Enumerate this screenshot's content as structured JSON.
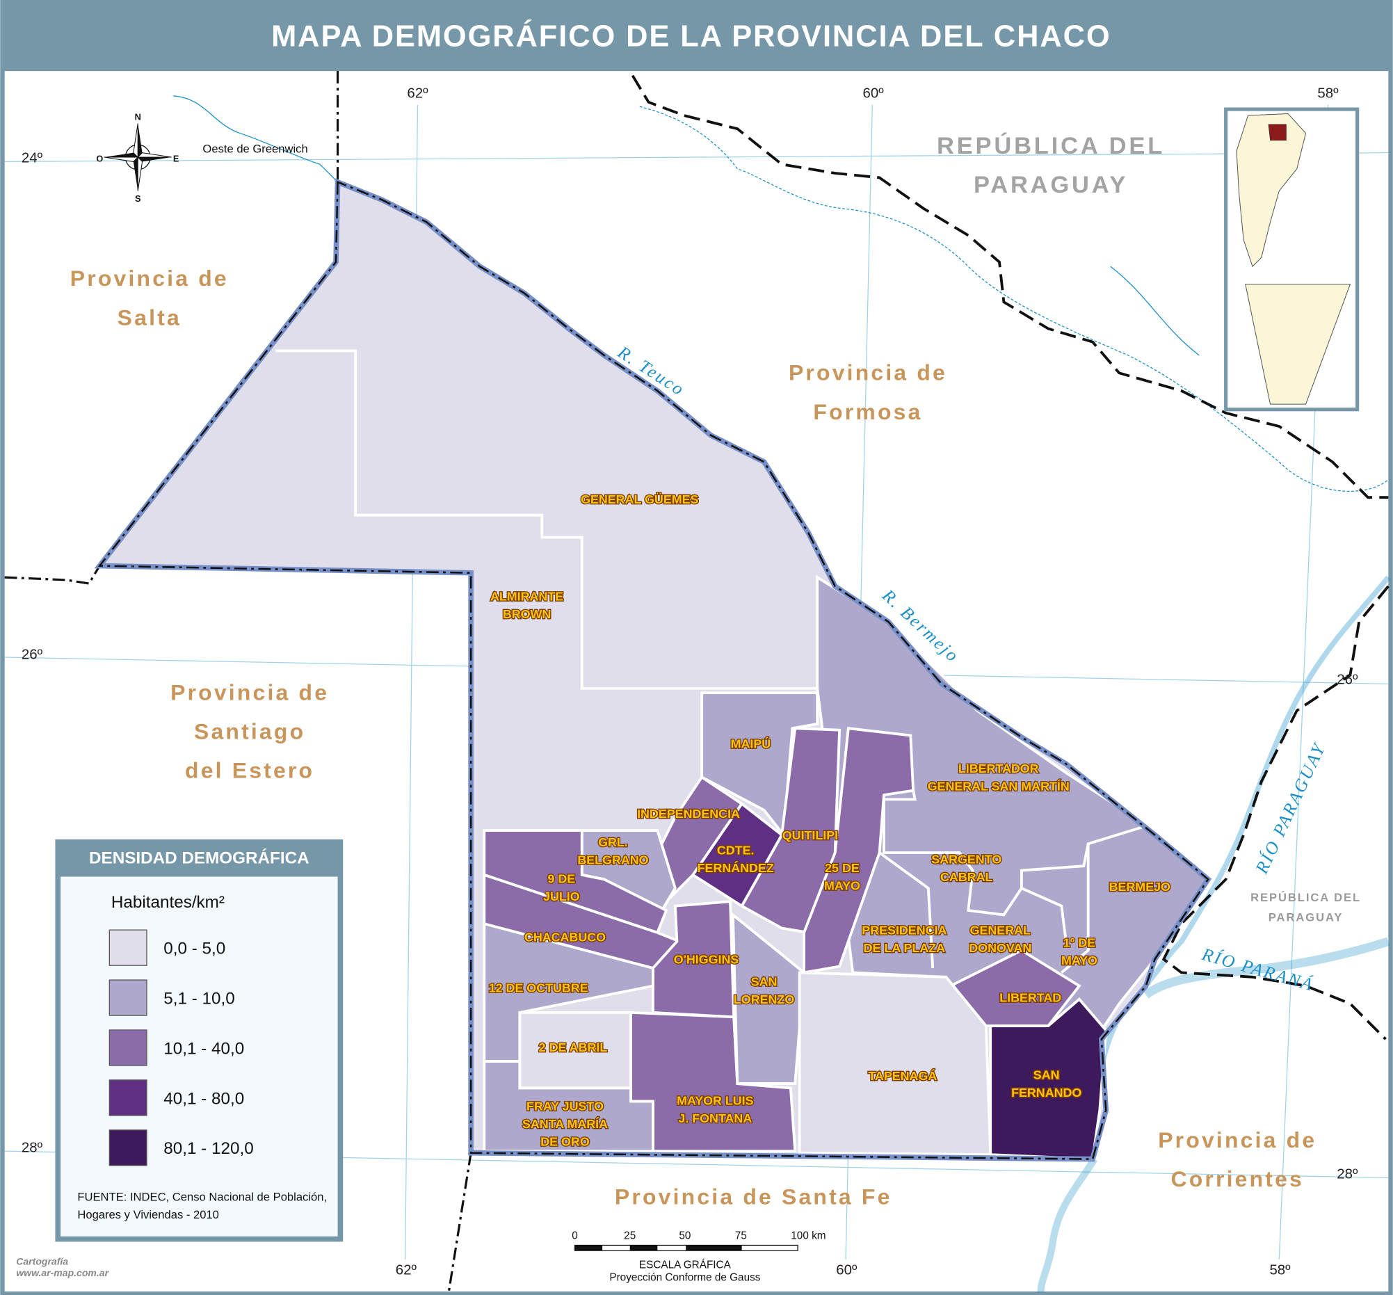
{
  "header": {
    "title": "MAPA DEMOGRÁFICO DE LA PROVINCIA DEL CHACO"
  },
  "map": {
    "regions": [
      {
        "label": [
          "Provincia de",
          "Salta"
        ]
      },
      {
        "label": [
          "Provincia de",
          "Formosa"
        ]
      },
      {
        "label": [
          "Provincia de",
          "Santiago",
          "del Estero"
        ]
      },
      {
        "label": [
          "Provincia de Santa Fe"
        ]
      },
      {
        "label": [
          "Provincia de",
          "Corrientes"
        ]
      }
    ],
    "countries": [
      {
        "label": [
          "REPÚBLICA DEL",
          "PARAGUAY"
        ]
      },
      {
        "label": [
          "REPÚBLICA DEL",
          "PARAGUAY"
        ]
      }
    ],
    "rivers": [
      "R. Teuco",
      "R. Bermejo",
      "RÍO PARAGUAY",
      "RÍO PARANÁ"
    ],
    "departments": [
      {
        "label": [
          "GENERAL GÜEMES"
        ],
        "color": "#e0deeb"
      },
      {
        "label": [
          "ALMIRANTE",
          "BROWN"
        ],
        "color": "#e0deeb"
      },
      {
        "label": [
          "MAIPÚ"
        ],
        "color": "#aea8cc"
      },
      {
        "label": [
          "LIBERTADOR",
          "GENERAL SAN MARTÍN"
        ],
        "color": "#aea8cc"
      },
      {
        "label": [
          "INDEPENDENCIA"
        ],
        "color": "#8b6ca8"
      },
      {
        "label": [
          "QUITILIPI"
        ],
        "color": "#8b6ca8"
      },
      {
        "label": [
          "CDTE.",
          "FERNÁNDEZ"
        ],
        "color": "#5e2f82"
      },
      {
        "label": [
          "GRL.",
          "BELGRANO"
        ],
        "color": "#aea8cc"
      },
      {
        "label": [
          "25 DE",
          "MAYO"
        ],
        "color": "#8b6ca8"
      },
      {
        "label": [
          "SARGENTO",
          "CABRAL"
        ],
        "color": "#aea8cc"
      },
      {
        "label": [
          "BERMEJO"
        ],
        "color": "#aea8cc"
      },
      {
        "label": [
          "9 DE",
          "JULIO"
        ],
        "color": "#8b6ca8"
      },
      {
        "label": [
          "CHACABUCO"
        ],
        "color": "#8b6ca8"
      },
      {
        "label": [
          "PRESIDENCIA",
          "DE LA PLAZA"
        ],
        "color": "#aea8cc"
      },
      {
        "label": [
          "GENERAL",
          "DONOVAN"
        ],
        "color": "#aea8cc"
      },
      {
        "label": [
          "1º DE",
          "MAYO"
        ],
        "color": "#aea8cc"
      },
      {
        "label": [
          "O'HIGGINS"
        ],
        "color": "#8b6ca8"
      },
      {
        "label": [
          "SAN",
          "LORENZO"
        ],
        "color": "#aea8cc"
      },
      {
        "label": [
          "12 DE OCTUBRE"
        ],
        "color": "#aea8cc"
      },
      {
        "label": [
          "LIBERTAD"
        ],
        "color": "#8b6ca8"
      },
      {
        "label": [
          "2 DE ABRIL"
        ],
        "color": "#e0deeb"
      },
      {
        "label": [
          "TAPENAGÁ"
        ],
        "color": "#e0deeb"
      },
      {
        "label": [
          "SAN",
          "FERNANDO"
        ],
        "color": "#3e1a5c"
      },
      {
        "label": [
          "MAYOR LUIS",
          "J. FONTANA"
        ],
        "color": "#8b6ca8"
      },
      {
        "label": [
          "FRAY JUSTO",
          "SANTA MARÍA",
          "DE ORO"
        ],
        "color": "#aea8cc"
      }
    ],
    "coordinates": [
      "62º",
      "60º",
      "58º",
      "24º",
      "26º",
      "28º",
      "26º",
      "28º",
      "62º",
      "60º",
      "58º"
    ],
    "north_arrow": [
      "N",
      "S",
      "E",
      "O"
    ],
    "meridian_note": "Oeste de Greenwich"
  },
  "legend": {
    "title": "DENSIDAD DEMOGRÁFICA",
    "unit": "Habitantes/km²",
    "classes": [
      {
        "label": "0,0 - 5,0",
        "color": "#e0deeb"
      },
      {
        "label": "5,1 - 10,0",
        "color": "#aea8cc"
      },
      {
        "label": "10,1 - 40,0",
        "color": "#8b6ca8"
      },
      {
        "label": "40,1 - 80,0",
        "color": "#5e2f82"
      },
      {
        "label": "80,1 - 120,0",
        "color": "#3e1a5c"
      }
    ],
    "source": [
      "FUENTE: INDEC, Censo Nacional de Población,",
      "Hogares y Viviendas - 2010"
    ]
  },
  "scale": {
    "ticks": [
      "0",
      "25",
      "50",
      "75",
      "100 km"
    ],
    "title": "ESCALA GRÁFICA",
    "projection": "Proyección Conforme de Gauss"
  },
  "credit": [
    "Cartografía",
    "www.ar-map.com.ar"
  ]
}
